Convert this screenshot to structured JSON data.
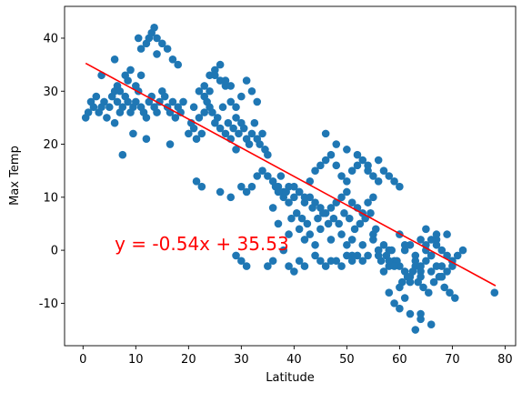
{
  "chart_data": {
    "type": "scatter",
    "title": "",
    "xlabel": "Latitude",
    "ylabel": "Max Temp",
    "xlim": [
      -3.5,
      82
    ],
    "ylim": [
      -18,
      46
    ],
    "xticks": [
      0,
      10,
      20,
      30,
      40,
      50,
      60,
      70,
      80
    ],
    "yticks": [
      -10,
      0,
      10,
      20,
      30,
      40
    ],
    "grid": false,
    "colors": {
      "points": "#1f77b4",
      "line": "#ff0000",
      "annotation": "#ff0000"
    },
    "regression": {
      "slope": -0.54,
      "intercept": 35.53,
      "x_range": [
        0.5,
        78.2
      ]
    },
    "annotation": {
      "text": "y = -0.54x + 35.53",
      "x": 6,
      "y": 0
    },
    "series": [
      {
        "x": [
          0.5,
          1,
          1.5,
          2,
          2.5,
          3,
          3.5,
          4,
          4.5,
          5,
          5.5,
          6,
          6.5,
          7,
          7.5,
          8,
          8.5,
          9,
          9.5,
          10,
          10.5,
          11,
          11.5,
          12,
          12.5,
          13,
          13.5,
          14,
          14.5,
          15,
          15.5,
          16,
          16.5,
          17,
          17.5,
          18,
          18.5,
          19,
          3.5,
          6,
          6.5,
          7,
          8.5,
          10,
          11,
          12,
          12.5,
          13,
          13.5,
          14,
          15,
          16,
          17,
          18,
          8,
          9,
          10.5,
          11,
          14,
          6,
          7.5,
          9.5,
          12,
          16.5,
          20,
          20.5,
          21,
          21.5,
          22,
          22.5,
          23,
          23.5,
          24,
          24.5,
          25,
          25.5,
          26,
          26.5,
          27,
          27.5,
          28,
          28.5,
          29,
          29.5,
          30,
          30.5,
          31,
          31.5,
          32,
          32.5,
          33,
          33.5,
          34,
          34.5,
          35,
          21,
          22,
          23,
          24,
          25,
          26,
          27,
          28,
          29,
          30,
          31,
          32,
          33,
          23,
          24,
          25,
          26,
          27,
          28,
          29,
          21.5,
          22.5,
          26,
          28,
          30,
          31,
          32,
          33,
          34,
          35,
          36,
          37,
          38,
          39,
          40,
          41,
          42,
          43,
          44,
          45,
          46,
          47,
          48,
          49,
          50,
          51,
          52,
          53,
          54,
          55,
          36,
          37,
          38,
          39,
          40,
          41,
          42,
          43,
          44,
          45,
          46,
          47,
          48,
          49,
          50,
          51,
          52,
          53,
          54,
          55,
          56,
          36.5,
          37.5,
          38.5,
          39.5,
          40.5,
          41.5,
          42.5,
          43.5,
          44.5,
          45.5,
          46.5,
          47.5,
          48.5,
          49.5,
          50.5,
          51.5,
          52.5,
          53.5,
          54.5,
          55.5,
          37,
          39,
          41,
          43,
          45,
          47,
          49,
          51,
          53,
          55,
          38,
          42,
          44,
          46,
          48,
          50,
          52,
          54,
          56,
          57,
          58,
          59,
          60,
          61,
          62,
          63,
          64,
          65,
          66,
          67,
          68,
          69,
          70,
          71,
          56,
          57,
          58,
          59,
          60,
          61,
          62,
          63,
          64,
          65,
          66,
          67,
          68,
          69,
          70,
          56.5,
          57.5,
          58.5,
          59.5,
          60.5,
          61.5,
          62.5,
          63.5,
          64.5,
          65.5,
          66.5,
          67.5,
          68.5,
          69.5,
          70.5,
          58,
          60,
          62,
          64,
          66,
          68,
          70,
          56,
          58,
          60,
          62,
          64,
          66,
          59,
          61,
          63,
          65,
          67,
          69,
          65,
          66,
          67,
          64,
          68,
          72,
          78,
          60,
          61,
          58,
          59,
          57,
          63,
          64,
          53,
          54,
          55,
          56,
          50,
          51,
          30,
          31,
          29,
          47,
          48,
          49,
          35,
          36,
          39,
          40,
          41,
          42,
          44,
          45,
          46,
          50,
          51,
          52
        ],
        "y": [
          25,
          26,
          28,
          27,
          29,
          26,
          27,
          28,
          25,
          27,
          29,
          30,
          28,
          26,
          27,
          29,
          28,
          26,
          27,
          28,
          30,
          27,
          26,
          25,
          28,
          29,
          27,
          26,
          28,
          30,
          29,
          27,
          26,
          28,
          25,
          27,
          26,
          28,
          33,
          36,
          31,
          30,
          32,
          31,
          33,
          39,
          40,
          41,
          42,
          40,
          39,
          38,
          36,
          35,
          33,
          34,
          40,
          38,
          37,
          24,
          18,
          22,
          21,
          20,
          22,
          24,
          23,
          21,
          25,
          22,
          26,
          28,
          27,
          26,
          24,
          25,
          23,
          27,
          22,
          24,
          21,
          23,
          19,
          22,
          24,
          23,
          21,
          20,
          22,
          24,
          21,
          20,
          22,
          19,
          18,
          27,
          30,
          31,
          33,
          34,
          32,
          31,
          28,
          25,
          29,
          32,
          30,
          28,
          29,
          30,
          33,
          35,
          32,
          31,
          27,
          13,
          12,
          11,
          10,
          12,
          11,
          12,
          14,
          15,
          14,
          13,
          12,
          11,
          12,
          10,
          11,
          9,
          10,
          9,
          8,
          7,
          8,
          9,
          10,
          11,
          9,
          8,
          7,
          9,
          10,
          8,
          11,
          10,
          9,
          12,
          11,
          10,
          13,
          15,
          16,
          17,
          18,
          16,
          14,
          13,
          15,
          16,
          17,
          15,
          14,
          13,
          12,
          14,
          11,
          6,
          7,
          6,
          5,
          8,
          6,
          7,
          5,
          6,
          5,
          7,
          6,
          4,
          5,
          6,
          7,
          4,
          5,
          3,
          4,
          3,
          4,
          2,
          3,
          2,
          1,
          3,
          0,
          2,
          1,
          22,
          20,
          19,
          18,
          16,
          17,
          15,
          14,
          13,
          12,
          0,
          1,
          -1,
          2,
          0,
          -1,
          1,
          0,
          -1,
          -2,
          -1,
          0,
          1,
          0,
          -2,
          -3,
          -4,
          -5,
          -3,
          -4,
          -2,
          -1,
          -3,
          -5,
          -4,
          -3,
          -2,
          -1,
          0,
          -2,
          -6,
          -5,
          -4,
          -6,
          -7,
          -8,
          -6,
          -5,
          -7,
          -8,
          -9,
          -8,
          -7,
          -6,
          -5,
          -4,
          -3,
          -2,
          -1,
          -3,
          -11,
          -12,
          -13,
          -14,
          -10,
          -9,
          -15,
          1,
          2,
          3,
          4,
          2,
          3,
          -12,
          -5,
          0,
          -8,
          3,
          1,
          -2,
          -3,
          -4,
          -2,
          -3,
          -2,
          -1,
          2,
          0,
          1,
          -1,
          -2,
          -3,
          -1,
          -2,
          -2,
          -3,
          -3,
          -2,
          -3,
          -4,
          -2,
          -3,
          -1,
          -2,
          -3,
          -1,
          -2,
          -1
        ]
      }
    ]
  }
}
